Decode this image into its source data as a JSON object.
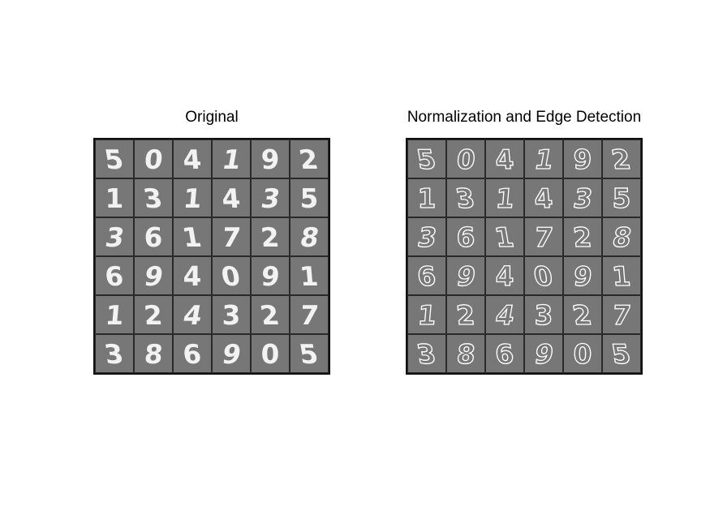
{
  "left_panel": {
    "title": "Original"
  },
  "right_panel": {
    "title": "Normalization and Edge Detection"
  },
  "digits": [
    [
      "5",
      "0",
      "4",
      "1",
      "9",
      "2"
    ],
    [
      "1",
      "3",
      "1",
      "4",
      "3",
      "5"
    ],
    [
      "3",
      "6",
      "1",
      "7",
      "2",
      "8"
    ],
    [
      "6",
      "9",
      "4",
      "0",
      "9",
      "1"
    ],
    [
      "1",
      "2",
      "4",
      "3",
      "2",
      "7"
    ],
    [
      "3",
      "8",
      "6",
      "9",
      "0",
      "5"
    ]
  ],
  "colors": {
    "cell_bg": "#777777",
    "border": "#2a2a2a",
    "digit": "#f2f2f2"
  }
}
